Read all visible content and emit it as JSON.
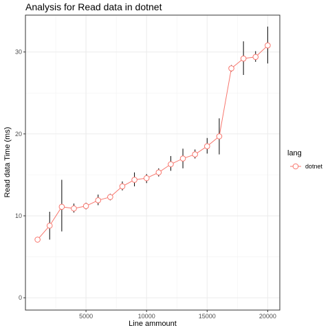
{
  "chart_data": {
    "type": "line",
    "title": "Analysis for Read data in dotnet",
    "xlabel": "Line ammount",
    "ylabel": "Read data Time (ms)",
    "xlim": [
      0,
      21000
    ],
    "ylim": [
      -1.5,
      34.5
    ],
    "xticks": [
      5000,
      10000,
      15000,
      20000
    ],
    "xtick_labels": [
      "5000",
      "10000",
      "15000",
      "20000"
    ],
    "xminor": [
      2500,
      7500,
      12500,
      17500
    ],
    "yticks": [
      0,
      10,
      20,
      30
    ],
    "ytick_labels": [
      "0",
      "10",
      "20",
      "30"
    ],
    "yminor": [
      5,
      15,
      25
    ],
    "grid": true,
    "legend": {
      "title": "lang",
      "position": "right"
    },
    "series": [
      {
        "name": "dotnet",
        "color": "#F8766D",
        "x": [
          1000,
          2000,
          3000,
          4000,
          5000,
          6000,
          7000,
          8000,
          9000,
          10000,
          11000,
          12000,
          13000,
          14000,
          15000,
          16000,
          17000,
          18000,
          19000,
          20000
        ],
        "y": [
          7.1,
          8.8,
          11.1,
          10.9,
          11.2,
          11.9,
          12.3,
          13.6,
          14.4,
          14.6,
          15.3,
          16.3,
          17.0,
          17.5,
          18.5,
          19.7,
          28.0,
          29.2,
          29.4,
          30.8
        ],
        "ymin": [
          7.1,
          7.1,
          8.1,
          10.4,
          10.8,
          11.3,
          11.9,
          13.1,
          13.6,
          14.0,
          14.8,
          15.5,
          15.8,
          17.0,
          17.6,
          17.5,
          27.6,
          27.2,
          28.8,
          28.6
        ],
        "ymax": [
          7.1,
          10.5,
          14.4,
          11.5,
          11.6,
          12.6,
          12.7,
          14.2,
          15.3,
          15.1,
          15.8,
          17.3,
          18.2,
          18.1,
          19.5,
          21.9,
          28.4,
          31.3,
          30.1,
          33.1
        ]
      }
    ]
  }
}
